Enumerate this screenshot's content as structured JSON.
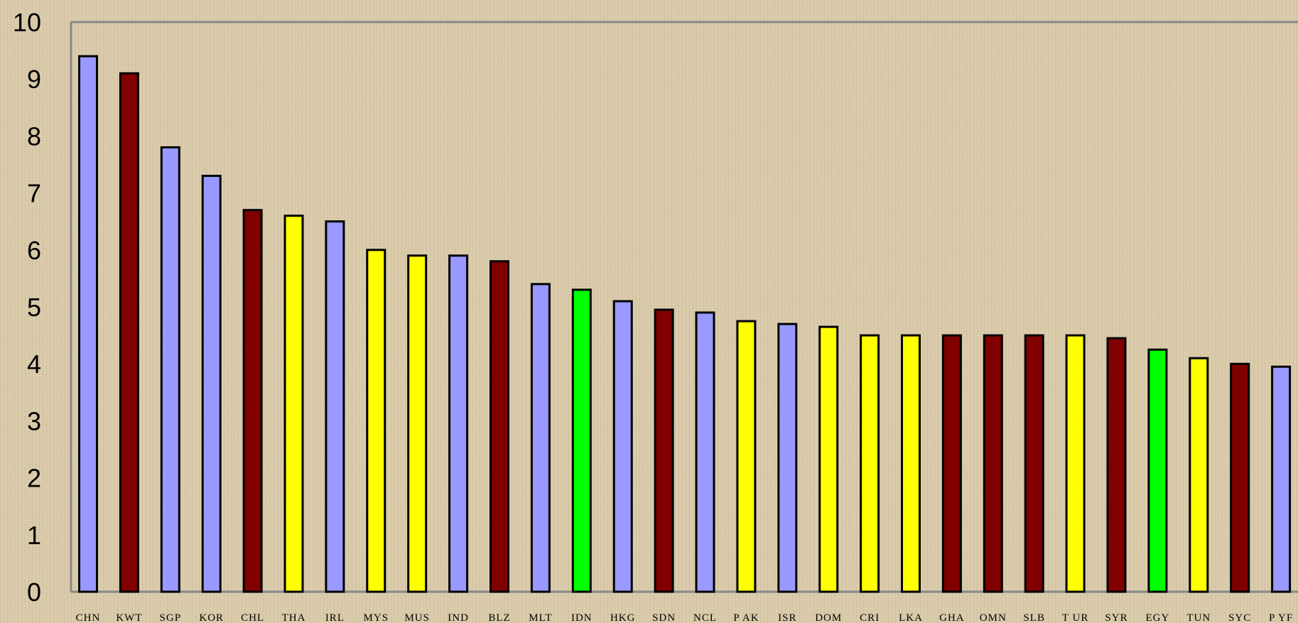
{
  "chart_data": {
    "type": "bar",
    "title": "",
    "xlabel": "",
    "ylabel": "",
    "ylim": [
      0,
      10
    ],
    "yticks": [
      0,
      1,
      2,
      3,
      4,
      5,
      6,
      7,
      8,
      9,
      10
    ],
    "grid": false,
    "legend": "none",
    "categories": [
      "CHN",
      "KWT",
      "SGP",
      "KOR",
      "CHL",
      "THA",
      "IRL",
      "MYS",
      "MUS",
      "IND",
      "BLZ",
      "MLT",
      "IDN",
      "HKG",
      "SDN",
      "NCL",
      "PAK",
      "ISR",
      "DOM",
      "CRI",
      "LKA",
      "GHA",
      "OMN",
      "SLB",
      "TUR",
      "SYR",
      "EGY",
      "TUN",
      "SYC",
      "PYF"
    ],
    "category_labels": [
      "CHN",
      "KWT",
      "SGP",
      "KOR",
      "CHL",
      "THA",
      "IRL",
      "MYS",
      "MUS",
      "IND",
      "BLZ",
      "MLT",
      "IDN",
      "HKG",
      "SDN",
      "NCL",
      "P AK",
      "ISR",
      "DOM",
      "CRI",
      "LKA",
      "GHA",
      "OMN",
      "SLB",
      "T UR",
      "SYR",
      "EGY",
      "TUN",
      "SYC",
      "P YF"
    ],
    "values": [
      9.4,
      9.1,
      7.8,
      7.3,
      6.7,
      6.6,
      6.5,
      6.0,
      5.9,
      5.9,
      5.8,
      5.4,
      5.3,
      5.1,
      4.95,
      4.9,
      4.75,
      4.7,
      4.65,
      4.5,
      4.5,
      4.5,
      4.5,
      4.5,
      4.5,
      4.45,
      4.25,
      4.1,
      4.0,
      3.95
    ],
    "colors": [
      "#9999ff",
      "#800000",
      "#9999ff",
      "#9999ff",
      "#800000",
      "#ffff00",
      "#9999ff",
      "#ffff00",
      "#ffff00",
      "#9999ff",
      "#800000",
      "#9999ff",
      "#00ff00",
      "#9999ff",
      "#800000",
      "#9999ff",
      "#ffff00",
      "#9999ff",
      "#ffff00",
      "#ffff00",
      "#ffff00",
      "#800000",
      "#800000",
      "#800000",
      "#ffff00",
      "#800000",
      "#00ff00",
      "#ffff00",
      "#800000",
      "#9999ff"
    ]
  },
  "style": {
    "axis_color": "#888888",
    "bar_outline": "#000000"
  }
}
